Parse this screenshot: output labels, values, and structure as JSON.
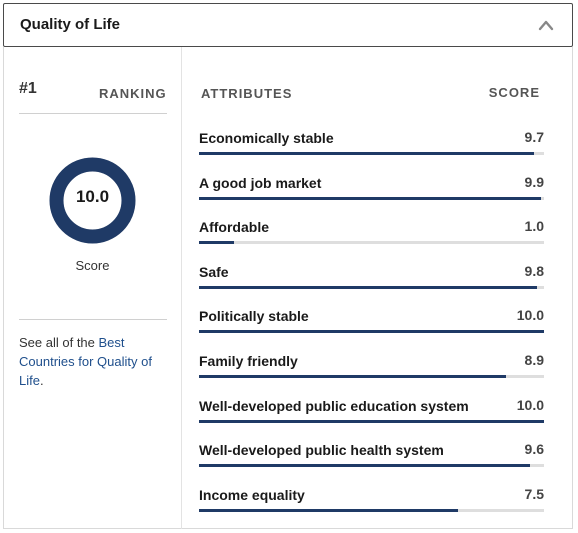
{
  "header": {
    "title": "Quality of Life",
    "toggle_icon": "chevron-up-icon"
  },
  "left": {
    "rank": "#1",
    "ranking_label": "RANKING",
    "score_value": "10.0",
    "score_fraction": 1.0,
    "score_caption": "Score",
    "see_all_prefix": "See all of the ",
    "see_all_link": "Best Countries for Quality of Life",
    "see_all_suffix": "."
  },
  "table": {
    "attributes_header": "ATTRIBUTES",
    "score_header": "SCORE",
    "rows": [
      {
        "label": "Economically stable",
        "score": "9.7",
        "fraction": 0.97
      },
      {
        "label": "A good job market",
        "score": "9.9",
        "fraction": 0.99
      },
      {
        "label": "Affordable",
        "score": "1.0",
        "fraction": 0.1
      },
      {
        "label": "Safe",
        "score": "9.8",
        "fraction": 0.98
      },
      {
        "label": "Politically stable",
        "score": "10.0",
        "fraction": 1.0
      },
      {
        "label": "Family friendly",
        "score": "8.9",
        "fraction": 0.89
      },
      {
        "label": "Well-developed public education system",
        "score": "10.0",
        "fraction": 1.0
      },
      {
        "label": "Well-developed public health system",
        "score": "9.6",
        "fraction": 0.96
      },
      {
        "label": "Income equality",
        "score": "7.5",
        "fraction": 0.75
      }
    ]
  },
  "colors": {
    "accent": "#1f3a66",
    "link": "#1f4f8c",
    "track": "#dedede"
  }
}
